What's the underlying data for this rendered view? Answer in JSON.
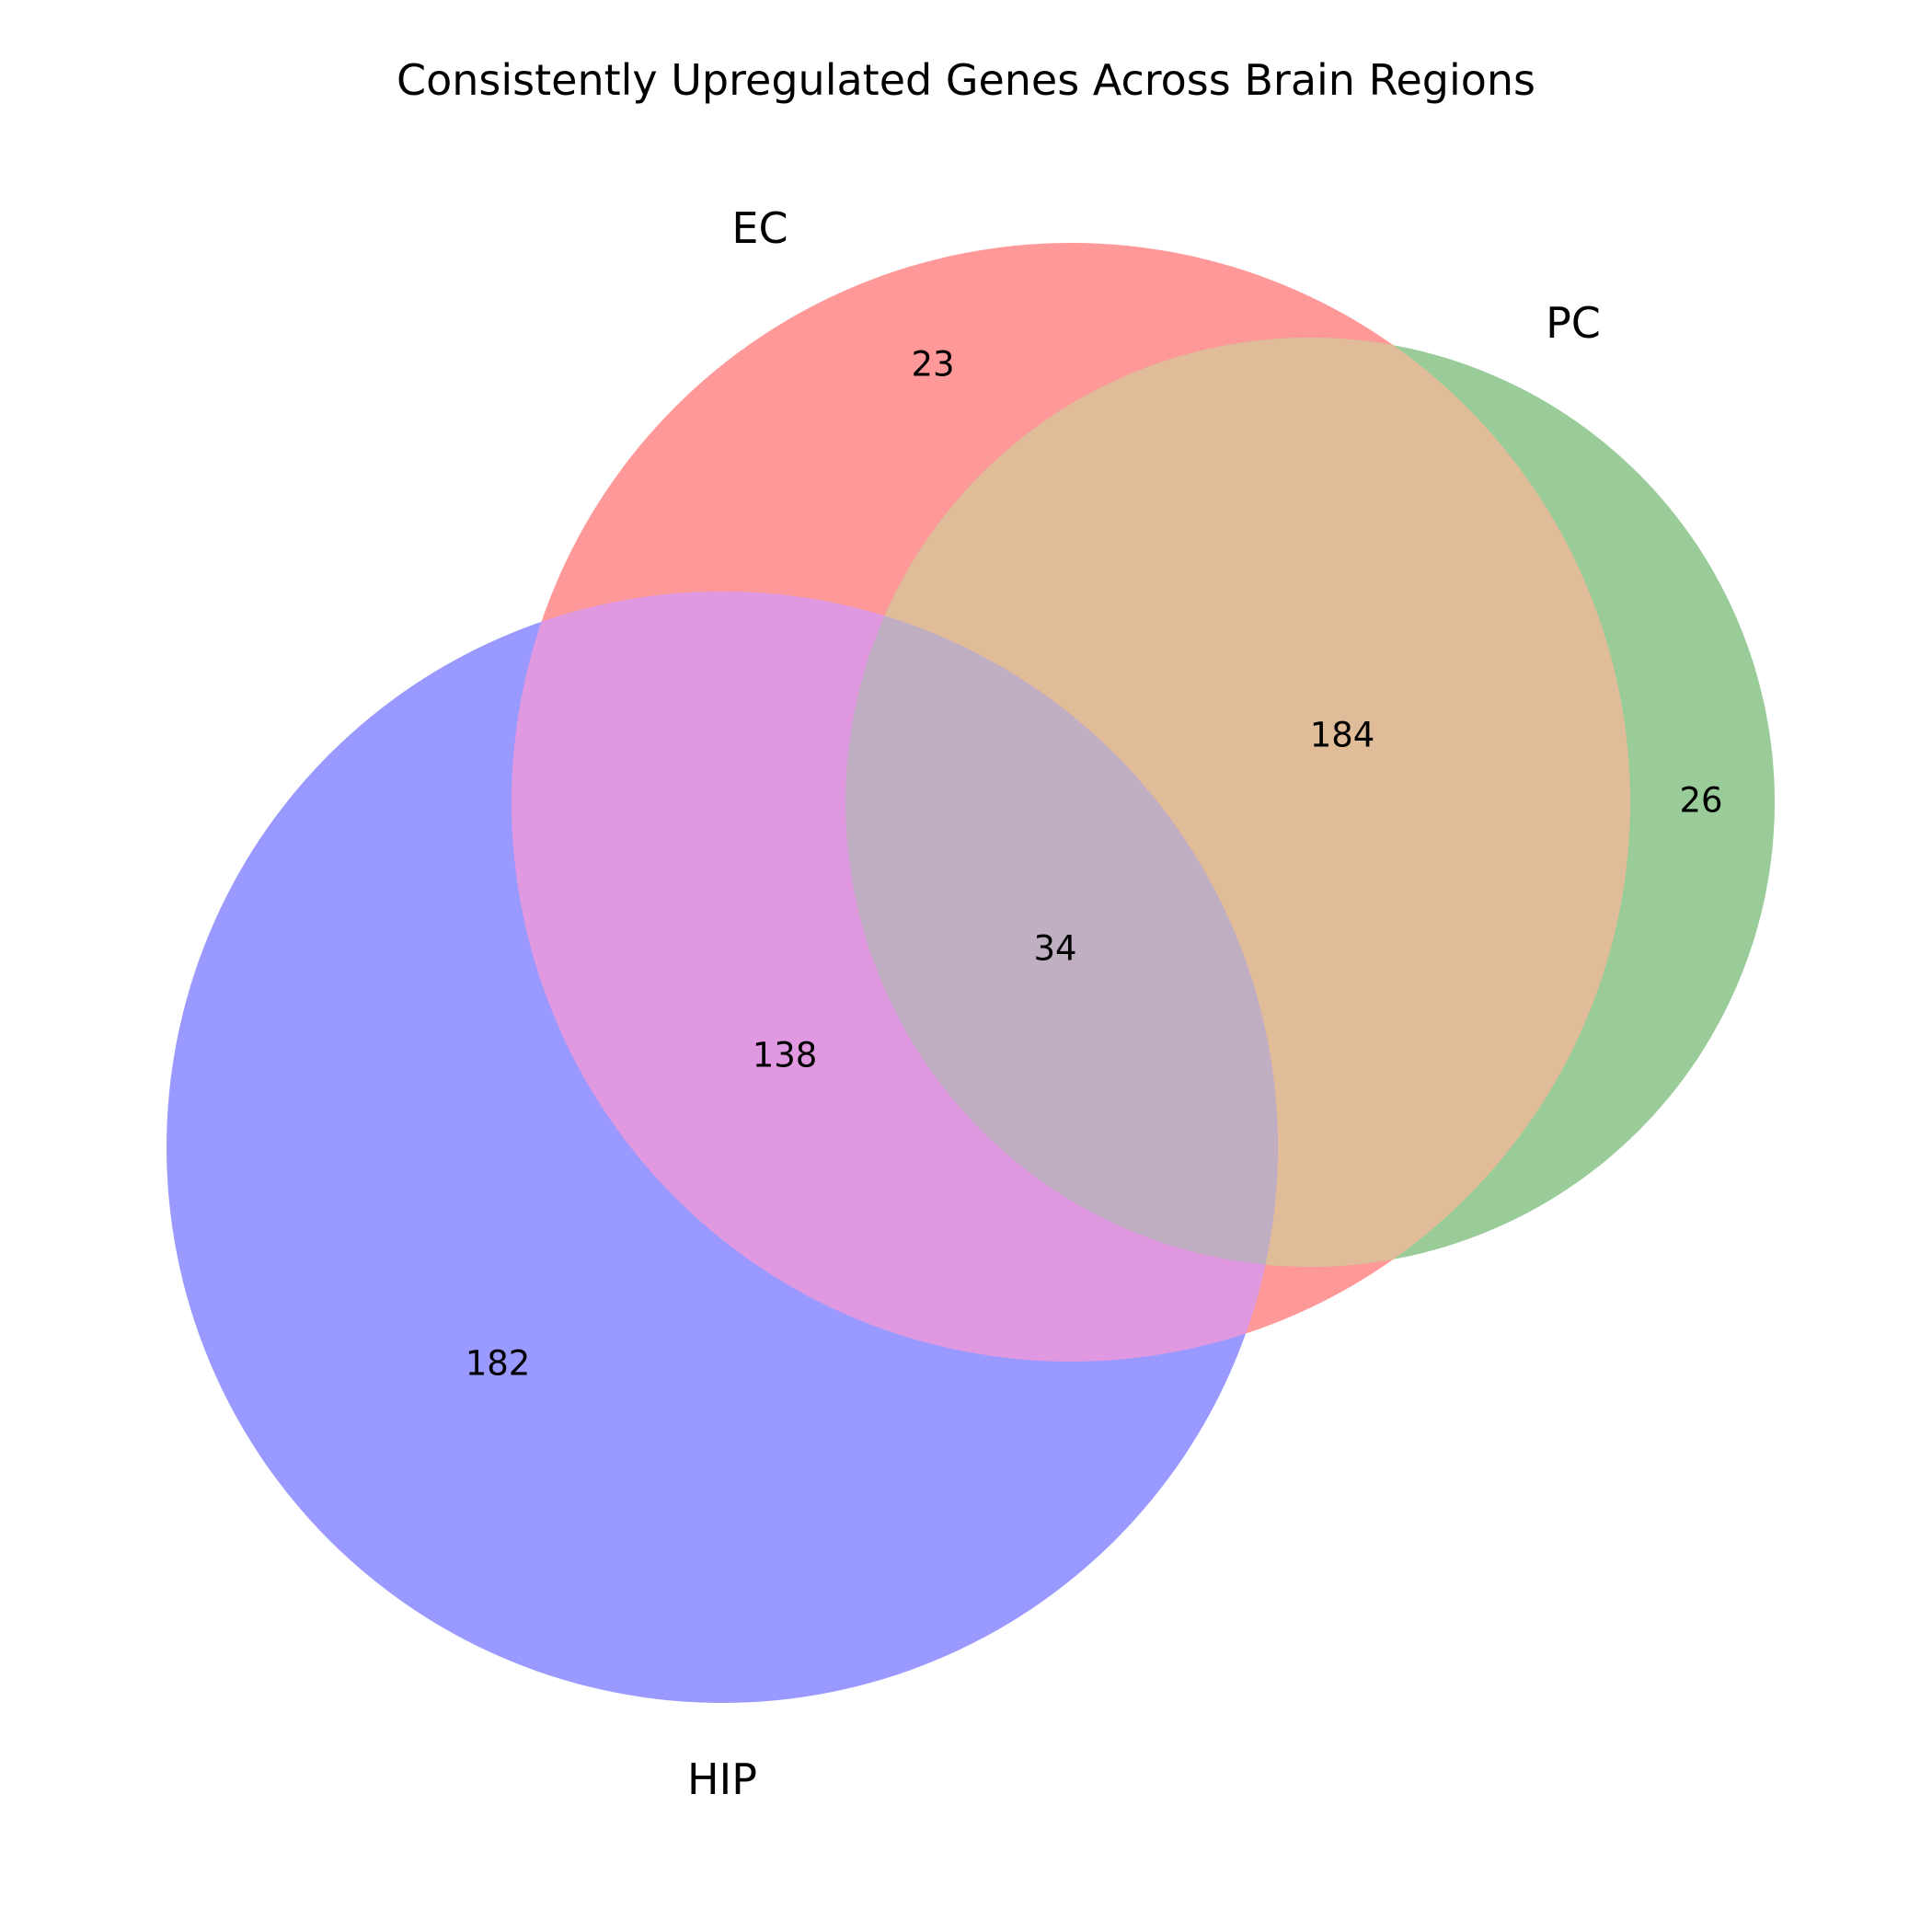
{
  "chart_data": {
    "type": "venn",
    "title": "Consistently Upregulated Genes Across Brain Regions",
    "sets": [
      {
        "id": "ec",
        "name": "EC",
        "color": "#ff9999"
      },
      {
        "id": "pc",
        "name": "PC",
        "color": "#99cc99"
      },
      {
        "id": "hip",
        "name": "HIP",
        "color": "#9999ff"
      }
    ],
    "regions": [
      {
        "id": "ec_only",
        "sets": [
          "EC"
        ],
        "value": 23
      },
      {
        "id": "pc_only",
        "sets": [
          "PC"
        ],
        "value": 26
      },
      {
        "id": "hip_only",
        "sets": [
          "HIP"
        ],
        "value": 182
      },
      {
        "id": "ec_pc",
        "sets": [
          "EC",
          "PC"
        ],
        "value": 184
      },
      {
        "id": "ec_hip",
        "sets": [
          "EC",
          "HIP"
        ],
        "value": 138
      },
      {
        "id": "ec_pc_hip",
        "sets": [
          "EC",
          "PC",
          "HIP"
        ],
        "value": 34
      }
    ],
    "intersection_colors": {
      "ec_pc": "#e0bc98",
      "ec_hip": "#e098e0",
      "ec_pc_hip": "#c0aec2"
    }
  }
}
